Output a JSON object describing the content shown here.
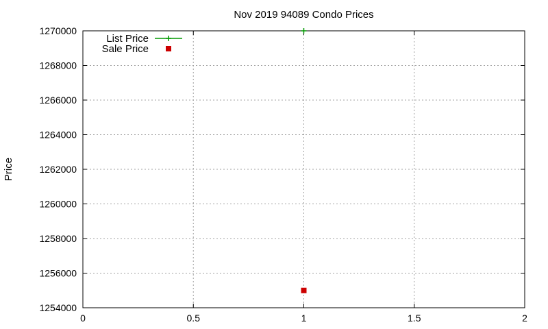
{
  "chart_data": {
    "type": "scatter",
    "title": "Nov 2019 94089 Condo Prices",
    "xlabel": "",
    "ylabel": "Price",
    "xlim": [
      0,
      2
    ],
    "ylim": [
      1254000,
      1270000
    ],
    "x_ticks": [
      0,
      0.5,
      1,
      1.5,
      2
    ],
    "x_tick_labels": [
      "0",
      "0.5",
      "1",
      "1.5",
      "2"
    ],
    "y_ticks": [
      1254000,
      1256000,
      1258000,
      1260000,
      1262000,
      1264000,
      1266000,
      1268000,
      1270000
    ],
    "y_tick_labels": [
      "1254000",
      "1256000",
      "1258000",
      "1260000",
      "1262000",
      "1264000",
      "1266000",
      "1268000",
      "1270000"
    ],
    "grid": true,
    "legend_position": "top-left",
    "series": [
      {
        "name": "List Price",
        "marker": "plus",
        "color": "#009900",
        "x": [
          1
        ],
        "y": [
          1270000
        ]
      },
      {
        "name": "Sale Price",
        "marker": "square",
        "color": "#cc0000",
        "x": [
          1
        ],
        "y": [
          1255000
        ]
      }
    ]
  }
}
